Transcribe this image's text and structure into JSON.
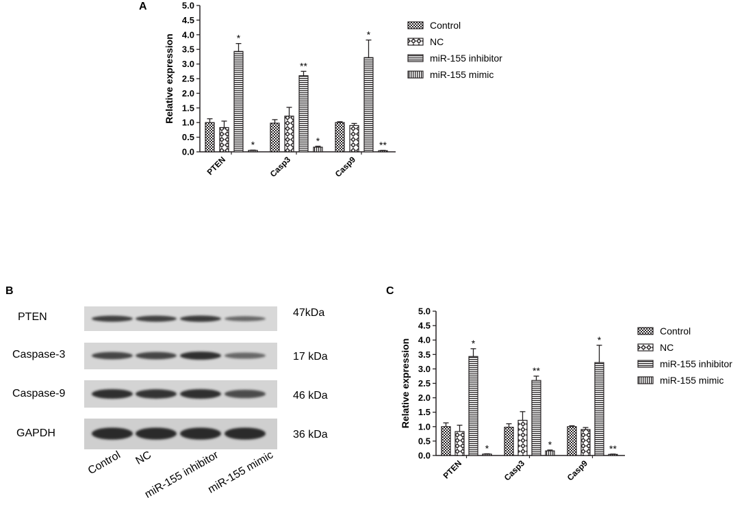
{
  "panels": {
    "a": "A",
    "b": "B",
    "c": "C"
  },
  "colors": {
    "ink": "#231f20",
    "band": "#2a2a2a",
    "blot_bg": "#d9d9d9"
  },
  "chart_data": [
    {
      "type": "bar",
      "panel": "A",
      "ylabel": "Relative expression",
      "ylim": [
        0,
        5.0
      ],
      "yticks": [
        "0.0",
        "0.5",
        "1.0",
        "1.5",
        "2.0",
        "2.5",
        "3.0",
        "3.5",
        "4.0",
        "4.5",
        "5.0"
      ],
      "categories": [
        "PTEN",
        "Casp3",
        "Casp9"
      ],
      "series": [
        {
          "name": "Control",
          "pattern": "checker",
          "values": [
            1.0,
            0.98,
            1.0
          ],
          "errors": [
            0.13,
            0.12,
            0.03
          ]
        },
        {
          "name": "NC",
          "pattern": "diamond",
          "values": [
            0.83,
            1.22,
            0.9
          ],
          "errors": [
            0.22,
            0.3,
            0.07
          ]
        },
        {
          "name": "miR-155 inhibitor",
          "pattern": "hlines",
          "values": [
            3.43,
            2.6,
            3.22
          ],
          "errors": [
            0.27,
            0.15,
            0.6
          ]
        },
        {
          "name": "miR-155 mimic",
          "pattern": "vlines",
          "values": [
            0.05,
            0.16,
            0.04
          ],
          "errors": [
            0.01,
            0.03,
            0.01
          ]
        }
      ],
      "annotations": [
        {
          "category": "PTEN",
          "series": "miR-155 inhibitor",
          "text": "*"
        },
        {
          "category": "PTEN",
          "series": "miR-155 mimic",
          "text": "*"
        },
        {
          "category": "Casp3",
          "series": "miR-155 inhibitor",
          "text": "**"
        },
        {
          "category": "Casp3",
          "series": "miR-155 mimic",
          "text": "*"
        },
        {
          "category": "Casp9",
          "series": "miR-155 inhibitor",
          "text": "*"
        },
        {
          "category": "Casp9",
          "series": "miR-155 mimic",
          "text": "**"
        }
      ],
      "legend": "right"
    },
    {
      "type": "bar",
      "panel": "C",
      "ylabel": "Relative expression",
      "ylim": [
        0,
        5.0
      ],
      "yticks": [
        "0.0",
        "0.5",
        "1.0",
        "1.5",
        "2.0",
        "2.5",
        "3.0",
        "3.5",
        "4.0",
        "4.5",
        "5.0"
      ],
      "categories": [
        "PTEN",
        "Casp3",
        "Casp9"
      ],
      "series": [
        {
          "name": "Control",
          "pattern": "checker",
          "values": [
            1.0,
            0.98,
            1.0
          ],
          "errors": [
            0.13,
            0.12,
            0.03
          ]
        },
        {
          "name": "NC",
          "pattern": "diamond",
          "values": [
            0.83,
            1.22,
            0.9
          ],
          "errors": [
            0.22,
            0.3,
            0.07
          ]
        },
        {
          "name": "miR-155 inhibitor",
          "pattern": "hlines",
          "values": [
            3.43,
            2.6,
            3.22
          ],
          "errors": [
            0.27,
            0.15,
            0.6
          ]
        },
        {
          "name": "miR-155 mimic",
          "pattern": "vlines",
          "values": [
            0.05,
            0.16,
            0.04
          ],
          "errors": [
            0.01,
            0.03,
            0.01
          ]
        }
      ],
      "annotations": [
        {
          "category": "PTEN",
          "series": "miR-155 inhibitor",
          "text": "*"
        },
        {
          "category": "PTEN",
          "series": "miR-155 mimic",
          "text": "*"
        },
        {
          "category": "Casp3",
          "series": "miR-155 inhibitor",
          "text": "**"
        },
        {
          "category": "Casp3",
          "series": "miR-155 mimic",
          "text": "*"
        },
        {
          "category": "Casp9",
          "series": "miR-155 inhibitor",
          "text": "*"
        },
        {
          "category": "Casp9",
          "series": "miR-155 mimic",
          "text": "**"
        }
      ],
      "legend": "right"
    }
  ],
  "western_blot": {
    "rows": [
      {
        "label": "PTEN",
        "size": "47kDa",
        "intensity": [
          0.8,
          0.8,
          0.85,
          0.45
        ]
      },
      {
        "label": "Caspase-3",
        "size": "17 kDa",
        "intensity": [
          0.75,
          0.75,
          0.95,
          0.45
        ]
      },
      {
        "label": "Caspase-9",
        "size": "46 kDa",
        "intensity": [
          0.95,
          0.9,
          0.95,
          0.7
        ]
      },
      {
        "label": "GAPDH",
        "size": "36 kDa",
        "intensity": [
          1.0,
          1.0,
          1.0,
          1.0
        ]
      }
    ],
    "lanes": [
      "Control",
      "NC",
      "miR-155 inhibitor",
      "miR-155 mimic"
    ]
  }
}
